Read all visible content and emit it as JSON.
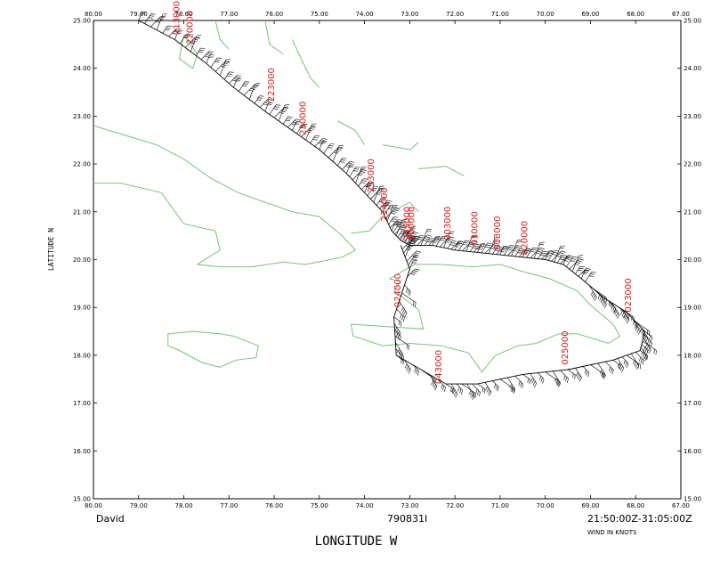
{
  "map": {
    "lon_ticks": [
      "80.00",
      "79.00",
      "78.00",
      "77.00",
      "76.00",
      "75.00",
      "74.00",
      "73.00",
      "72.00",
      "71.00",
      "70.00",
      "69.00",
      "68.00",
      "67.00"
    ],
    "lat_ticks": [
      "25.00",
      "24.00",
      "23.00",
      "22.00",
      "21.00",
      "20.00",
      "19.00",
      "18.00",
      "17.00",
      "16.00",
      "15.00"
    ],
    "xlabel": "LONGITUDE   W",
    "ylabel": "LATITUDE   N",
    "storm": "David",
    "flight_id": "790831I",
    "time_range": "21:50:00Z-31:05:00Z",
    "wind_units": "WIND IN KNOTS",
    "colors": {
      "coast": "#7cc07c",
      "track": "#000000",
      "time_label": "#d81818"
    }
  },
  "chart_data": {
    "type": "scatter",
    "title": "",
    "xlabel": "LONGITUDE   W",
    "ylabel": "LATITUDE   N",
    "xlim": [
      80,
      67
    ],
    "ylim": [
      15,
      25
    ],
    "grid": false,
    "series": [
      {
        "points": [
          [
            79.0,
            25.0
          ],
          [
            78.2,
            24.6
          ],
          [
            77.5,
            24.1
          ],
          [
            76.9,
            23.6
          ],
          [
            76.2,
            23.1
          ],
          [
            75.6,
            22.7
          ],
          [
            75.0,
            22.3
          ],
          [
            74.4,
            21.8
          ],
          [
            74.0,
            21.4
          ],
          [
            73.6,
            21.0
          ],
          [
            73.4,
            20.6
          ],
          [
            73.2,
            20.4
          ],
          [
            73.0,
            20.3
          ],
          [
            72.5,
            20.3
          ],
          [
            72.0,
            20.2
          ],
          [
            71.5,
            20.15
          ],
          [
            71.0,
            20.1
          ],
          [
            70.5,
            20.05
          ],
          [
            70.0,
            20.0
          ],
          [
            69.6,
            19.9
          ],
          [
            69.2,
            19.6
          ],
          [
            68.7,
            19.2
          ],
          [
            68.2,
            18.9
          ],
          [
            67.8,
            18.5
          ],
          [
            67.9,
            18.1
          ],
          [
            68.5,
            17.9
          ],
          [
            69.5,
            17.7
          ],
          [
            70.5,
            17.6
          ],
          [
            71.5,
            17.4
          ],
          [
            72.2,
            17.4
          ],
          [
            73.3,
            18.0
          ],
          [
            73.35,
            18.8
          ],
          [
            73.0,
            19.8
          ],
          [
            73.2,
            20.3
          ]
        ]
      }
    ],
    "time_labels": [
      {
        "text": "213000",
        "lon": 78.1,
        "lat": 24.7
      },
      {
        "text": "220000",
        "lon": 77.8,
        "lat": 24.5
      },
      {
        "text": "223000",
        "lon": 76.0,
        "lat": 23.3
      },
      {
        "text": "230000",
        "lon": 75.3,
        "lat": 22.6
      },
      {
        "text": "233000",
        "lon": 73.8,
        "lat": 21.4
      },
      {
        "text": "234000",
        "lon": 73.5,
        "lat": 20.8
      },
      {
        "text": "235000",
        "lon": 73.0,
        "lat": 20.4
      },
      {
        "text": "000000",
        "lon": 72.9,
        "lat": 20.4
      },
      {
        "text": "003000",
        "lon": 72.1,
        "lat": 20.4
      },
      {
        "text": "010000",
        "lon": 71.5,
        "lat": 20.3
      },
      {
        "text": "013000",
        "lon": 71.0,
        "lat": 20.2
      },
      {
        "text": "020000",
        "lon": 70.4,
        "lat": 20.1
      },
      {
        "text": "023000",
        "lon": 68.1,
        "lat": 18.9
      },
      {
        "text": "025000",
        "lon": 69.5,
        "lat": 17.8
      },
      {
        "text": "024000",
        "lon": 73.2,
        "lat": 19.0
      },
      {
        "text": "043000",
        "lon": 72.3,
        "lat": 17.4
      }
    ]
  }
}
